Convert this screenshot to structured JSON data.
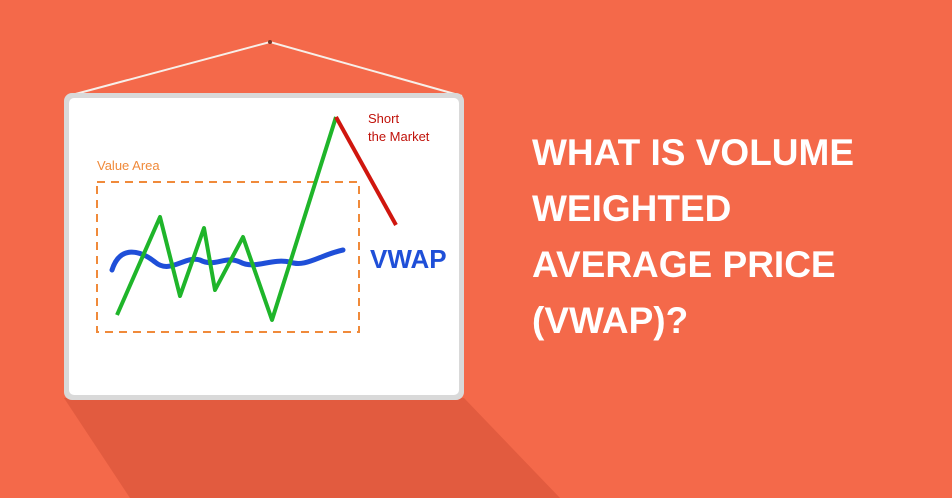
{
  "board": {
    "value_area": "Value Area",
    "short": [
      "Short",
      "the Market"
    ],
    "vwap": "VWAP"
  },
  "heading": {
    "lines": [
      "WHAT IS VOLUME",
      "WEIGHTED",
      "AVERAGE PRICE",
      "(VWAP)?"
    ]
  }
}
